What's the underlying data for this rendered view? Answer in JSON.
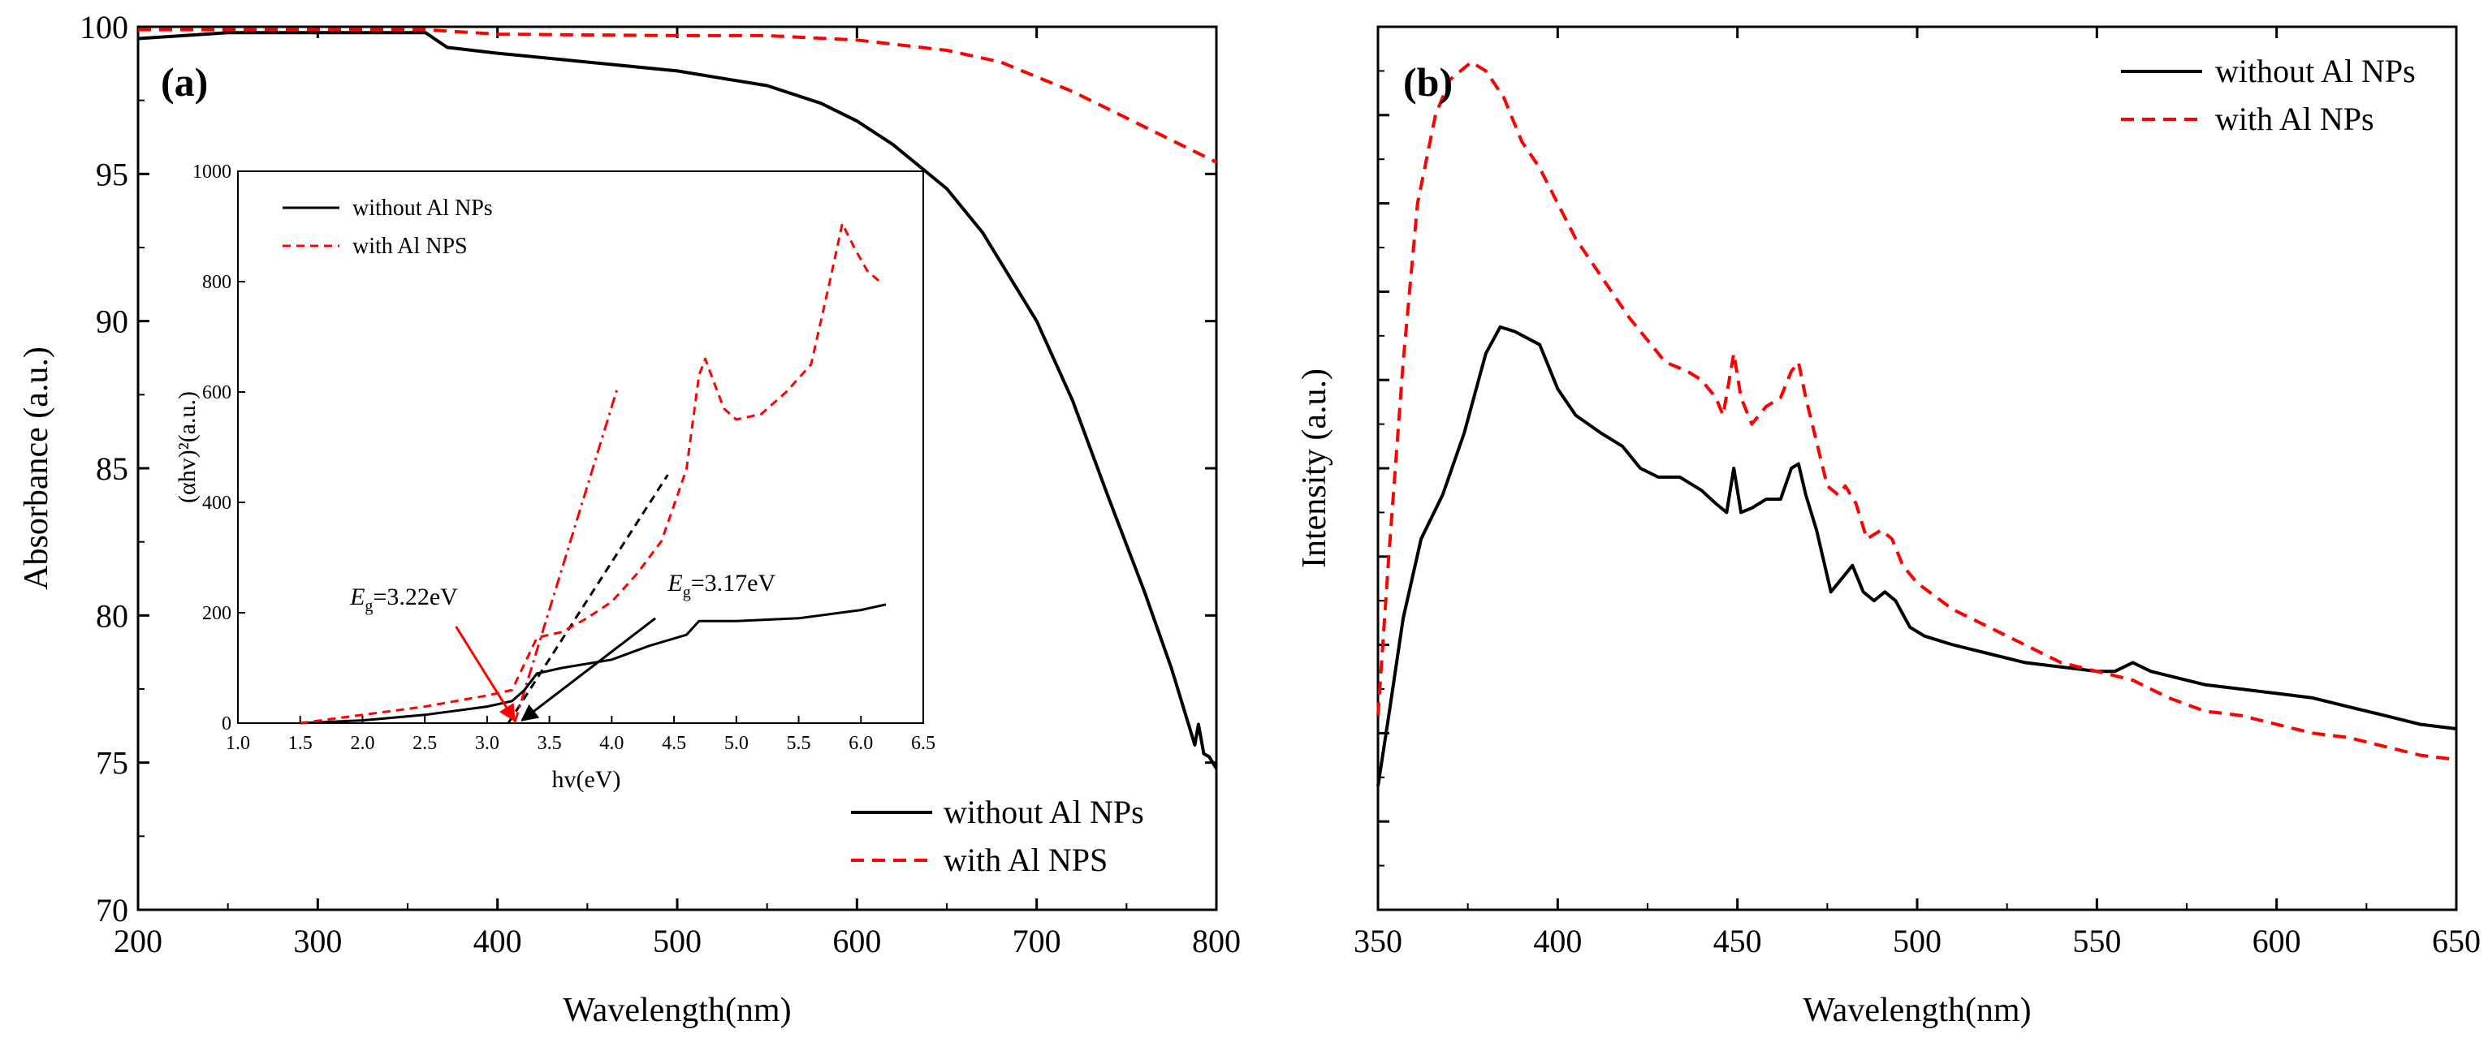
{
  "chart_data": [
    {
      "id": "panel-a",
      "type": "line",
      "panel_label": "(a)",
      "xlabel": "Wavelength(nm)",
      "ylabel": "Absorbance (a.u.)",
      "xlim": [
        200,
        800
      ],
      "ylim": [
        70,
        100
      ],
      "x_ticks": [
        200,
        300,
        400,
        500,
        600,
        700,
        800
      ],
      "y_ticks": [
        70,
        75,
        80,
        85,
        90,
        95,
        100
      ],
      "legend_position": "bottom-right",
      "series": [
        {
          "name": "without Al NPs",
          "color": "#000000",
          "style": "solid",
          "points": [
            [
              200,
              99.6
            ],
            [
              250,
              99.8
            ],
            [
              300,
              99.8
            ],
            [
              360,
              99.8
            ],
            [
              372,
              99.3
            ],
            [
              400,
              99.1
            ],
            [
              450,
              98.8
            ],
            [
              500,
              98.5
            ],
            [
              520,
              98.3
            ],
            [
              530,
              98.2
            ],
            [
              550,
              98.0
            ],
            [
              580,
              97.4
            ],
            [
              600,
              96.8
            ],
            [
              620,
              96.0
            ],
            [
              650,
              94.5
            ],
            [
              670,
              93.0
            ],
            [
              700,
              90.0
            ],
            [
              720,
              87.3
            ],
            [
              740,
              84.0
            ],
            [
              760,
              80.8
            ],
            [
              775,
              78.2
            ],
            [
              785,
              76.2
            ],
            [
              788,
              75.6
            ],
            [
              790,
              76.3
            ],
            [
              793,
              75.3
            ],
            [
              796,
              75.2
            ],
            [
              800,
              74.8
            ]
          ]
        },
        {
          "name": "with Al NPS",
          "color": "#ff0000",
          "style": "dashed",
          "points": [
            [
              200,
              99.9
            ],
            [
              300,
              99.9
            ],
            [
              360,
              99.9
            ],
            [
              400,
              99.75
            ],
            [
              500,
              99.7
            ],
            [
              550,
              99.7
            ],
            [
              600,
              99.55
            ],
            [
              650,
              99.2
            ],
            [
              680,
              98.8
            ],
            [
              700,
              98.3
            ],
            [
              720,
              97.8
            ],
            [
              740,
              97.2
            ],
            [
              760,
              96.6
            ],
            [
              780,
              96.0
            ],
            [
              800,
              95.4
            ]
          ]
        }
      ],
      "inset": {
        "xlabel": "hv(eV)",
        "ylabel": "(αhv)²(a.u.)",
        "xlim": [
          1.0,
          6.5
        ],
        "ylim": [
          0,
          1000
        ],
        "x_ticks": [
          1.0,
          1.5,
          2.0,
          2.5,
          3.0,
          3.5,
          4.0,
          4.5,
          5.0,
          5.5,
          6.0,
          6.5
        ],
        "y_ticks": [
          0,
          200,
          400,
          600,
          800,
          1000
        ],
        "legend_position": "top-left",
        "series": [
          {
            "name": "without Al NPs",
            "color": "#000000",
            "style": "solid",
            "points": [
              [
                1.5,
                0
              ],
              [
                2.0,
                5
              ],
              [
                2.5,
                15
              ],
              [
                3.0,
                30
              ],
              [
                3.2,
                40
              ],
              [
                3.3,
                60
              ],
              [
                3.4,
                90
              ],
              [
                3.6,
                100
              ],
              [
                4.0,
                115
              ],
              [
                4.3,
                140
              ],
              [
                4.6,
                160
              ],
              [
                4.7,
                185
              ],
              [
                4.8,
                185
              ],
              [
                5.0,
                185
              ],
              [
                5.5,
                190
              ],
              [
                6.0,
                205
              ],
              [
                6.2,
                215
              ]
            ]
          },
          {
            "name": "with Al NPS",
            "color": "#ff0000",
            "style": "dashed",
            "points": [
              [
                1.5,
                0
              ],
              [
                2.0,
                15
              ],
              [
                2.5,
                30
              ],
              [
                3.0,
                50
              ],
              [
                3.2,
                60
              ],
              [
                3.4,
                155
              ],
              [
                3.6,
                165
              ],
              [
                3.8,
                190
              ],
              [
                4.0,
                220
              ],
              [
                4.2,
                270
              ],
              [
                4.4,
                330
              ],
              [
                4.6,
                460
              ],
              [
                4.7,
                630
              ],
              [
                4.75,
                660
              ],
              [
                4.8,
                630
              ],
              [
                4.9,
                570
              ],
              [
                5.0,
                550
              ],
              [
                5.2,
                560
              ],
              [
                5.4,
                600
              ],
              [
                5.6,
                650
              ],
              [
                5.75,
                800
              ],
              [
                5.85,
                905
              ],
              [
                5.95,
                860
              ],
              [
                6.05,
                820
              ],
              [
                6.15,
                800
              ]
            ]
          }
        ],
        "fit_lines": [
          {
            "color": "#000000",
            "style": "dashed",
            "points": [
              [
                3.17,
                0
              ],
              [
                4.45,
                450
              ]
            ]
          },
          {
            "color": "#ff0000",
            "style": "dashdot",
            "points": [
              [
                3.22,
                0
              ],
              [
                4.05,
                610
              ]
            ]
          }
        ],
        "annotations": [
          {
            "label_main": "E",
            "label_sub": "g",
            "label_value": "=3.22eV",
            "color": "#ff0000",
            "text_at": [
              1.9,
              215
            ],
            "arrow_from": [
              2.75,
              175
            ],
            "arrow_to": [
              3.22,
              5
            ]
          },
          {
            "label_main": "E",
            "label_sub": "g",
            "label_value": "=3.17eV",
            "color": "#000000",
            "text_at": [
              4.45,
              240
            ],
            "arrow_from": [
              4.35,
              190
            ],
            "arrow_to": [
              3.28,
              5
            ]
          }
        ]
      }
    },
    {
      "id": "panel-b",
      "type": "line",
      "panel_label": "(b)",
      "xlabel": "Wavelength(nm)",
      "ylabel": "Intensity (a.u.)",
      "xlim": [
        350,
        650
      ],
      "ylim": [
        0,
        100
      ],
      "y_tick_labels_shown": false,
      "x_ticks": [
        350,
        400,
        450,
        500,
        550,
        600,
        650
      ],
      "legend_position": "top-right",
      "series": [
        {
          "name": "without Al NPs",
          "color": "#000000",
          "style": "solid",
          "points": [
            [
              350,
              14
            ],
            [
              353,
              22
            ],
            [
              357,
              33
            ],
            [
              362,
              42
            ],
            [
              368,
              47
            ],
            [
              374,
              54
            ],
            [
              380,
              63
            ],
            [
              384,
              66
            ],
            [
              388,
              65.5
            ],
            [
              395,
              64
            ],
            [
              400,
              59
            ],
            [
              405,
              56
            ],
            [
              412,
              54
            ],
            [
              418,
              52.5
            ],
            [
              423,
              50
            ],
            [
              428,
              49
            ],
            [
              434,
              49
            ],
            [
              440,
              47.5
            ],
            [
              444,
              46
            ],
            [
              447,
              45
            ],
            [
              449,
              50
            ],
            [
              451,
              45
            ],
            [
              454,
              45.5
            ],
            [
              458,
              46.5
            ],
            [
              462,
              46.5
            ],
            [
              465,
              50
            ],
            [
              467,
              50.5
            ],
            [
              469,
              47
            ],
            [
              472,
              43
            ],
            [
              476,
              36
            ],
            [
              480,
              38
            ],
            [
              482,
              39
            ],
            [
              485,
              36
            ],
            [
              488,
              35
            ],
            [
              491,
              36
            ],
            [
              494,
              35
            ],
            [
              498,
              32
            ],
            [
              502,
              31
            ],
            [
              510,
              30
            ],
            [
              520,
              29
            ],
            [
              530,
              28
            ],
            [
              540,
              27.5
            ],
            [
              550,
              27
            ],
            [
              555,
              27
            ],
            [
              560,
              28
            ],
            [
              565,
              27
            ],
            [
              570,
              26.5
            ],
            [
              580,
              25.5
            ],
            [
              590,
              25
            ],
            [
              600,
              24.5
            ],
            [
              610,
              24
            ],
            [
              620,
              23
            ],
            [
              630,
              22
            ],
            [
              640,
              21
            ],
            [
              650,
              20.5
            ]
          ]
        },
        {
          "name": "with Al NPs",
          "color": "#ff0000",
          "style": "dashed",
          "points": [
            [
              350,
              22
            ],
            [
              353,
              40
            ],
            [
              357,
              62
            ],
            [
              361,
              80
            ],
            [
              366,
              90
            ],
            [
              370,
              94
            ],
            [
              376,
              96
            ],
            [
              380,
              95
            ],
            [
              385,
              92
            ],
            [
              390,
              87
            ],
            [
              395,
              84
            ],
            [
              400,
              80
            ],
            [
              405,
              76
            ],
            [
              410,
              73
            ],
            [
              415,
              70
            ],
            [
              420,
              67
            ],
            [
              425,
              64.5
            ],
            [
              430,
              62
            ],
            [
              436,
              61
            ],
            [
              440,
              60
            ],
            [
              444,
              58
            ],
            [
              446,
              56
            ],
            [
              449,
              63
            ],
            [
              451,
              58
            ],
            [
              454,
              55
            ],
            [
              458,
              57
            ],
            [
              462,
              58
            ],
            [
              465,
              61
            ],
            [
              467,
              62
            ],
            [
              469,
              58
            ],
            [
              472,
              53
            ],
            [
              475,
              48
            ],
            [
              478,
              47
            ],
            [
              480,
              48
            ],
            [
              483,
              46
            ],
            [
              486,
              42
            ],
            [
              490,
              43
            ],
            [
              493,
              42
            ],
            [
              496,
              39
            ],
            [
              500,
              37
            ],
            [
              510,
              34
            ],
            [
              520,
              32
            ],
            [
              530,
              30
            ],
            [
              540,
              28
            ],
            [
              550,
              27
            ],
            [
              560,
              26
            ],
            [
              570,
              24
            ],
            [
              580,
              22.5
            ],
            [
              590,
              22
            ],
            [
              600,
              21
            ],
            [
              610,
              20
            ],
            [
              620,
              19.5
            ],
            [
              630,
              18.5
            ],
            [
              640,
              17.5
            ],
            [
              650,
              17
            ]
          ]
        }
      ]
    }
  ]
}
